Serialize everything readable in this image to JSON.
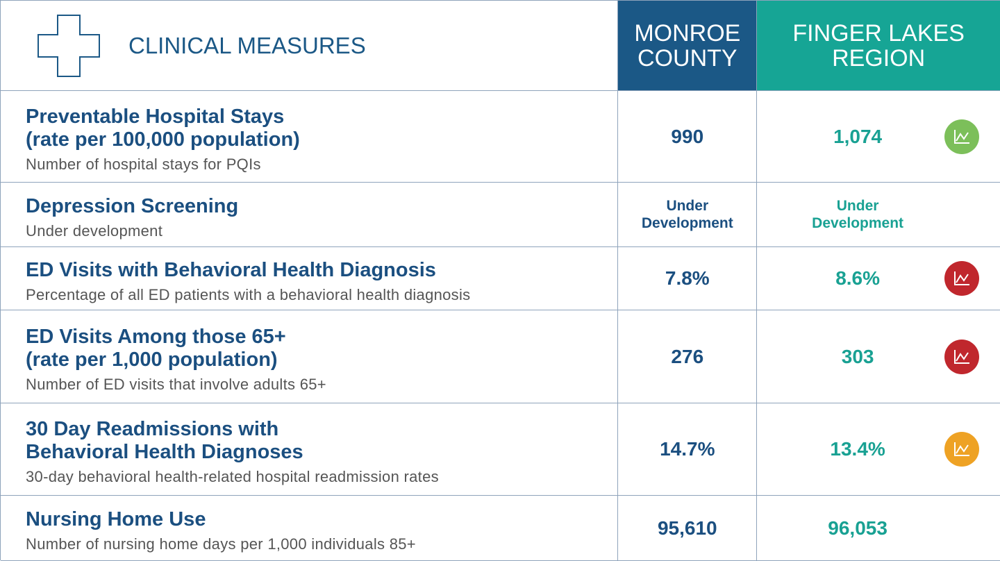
{
  "header": {
    "title": "CLINICAL MEASURES",
    "columns": [
      [
        "MONROE",
        "COUNTY"
      ],
      [
        "FINGER LAKES",
        "REGION"
      ]
    ]
  },
  "table": {
    "rows": [
      {
        "title": [
          "Preventable Hospital Stays",
          "(rate per 100,000 population)"
        ],
        "subtitle": "Number of hospital stays for PQIs",
        "monroe": "990",
        "finger_lakes": "1,074",
        "trend_color": "#7cbf5a"
      },
      {
        "title": [
          "Depression Screening"
        ],
        "subtitle": "Under development",
        "monroe": "Under Development",
        "finger_lakes": "Under Development"
      },
      {
        "title": [
          "ED Visits with Behavioral Health Diagnosis"
        ],
        "subtitle": "Percentage of all ED patients with a behavioral health diagnosis",
        "monroe": "7.8%",
        "finger_lakes": "8.6%",
        "trend_color": "#c0272d"
      },
      {
        "title": [
          "ED Visits Among those 65+",
          "(rate per 1,000 population)"
        ],
        "subtitle": "Number of ED visits that involve adults 65+",
        "monroe": "276",
        "finger_lakes": "303",
        "trend_color": "#c0272d"
      },
      {
        "title": [
          "30 Day Readmissions with",
          "Behavioral Health Diagnoses"
        ],
        "subtitle": "30-day behavioral health-related hospital readmission rates",
        "monroe": "14.7%",
        "finger_lakes": "13.4%",
        "trend_color": "#eea224"
      },
      {
        "title": [
          "Nursing Home Use"
        ],
        "subtitle": "Number of nursing home days per 1,000 individuals 85+",
        "monroe": "95,610",
        "finger_lakes": "96,053"
      }
    ]
  }
}
